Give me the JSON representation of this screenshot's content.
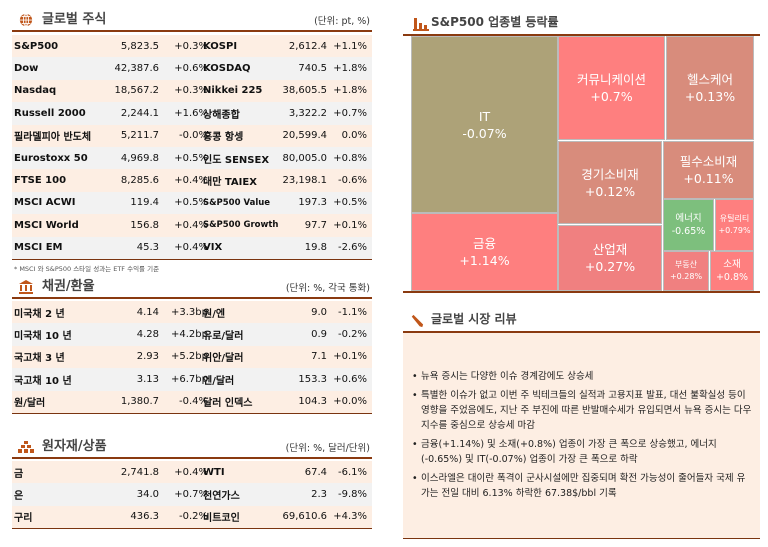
{
  "global_stocks": {
    "title": "글로벌 주식",
    "unit": "(단위: pt, %)",
    "rows": [
      [
        "S&P500",
        "5,823.5",
        "+0.3%",
        "KOSPI",
        "2,612.4",
        "+1.1%"
      ],
      [
        "Dow",
        "42,387.6",
        "+0.6%",
        "KOSDAQ",
        "740.5",
        "+1.8%"
      ],
      [
        "Nasdaq",
        "18,567.2",
        "+0.3%",
        "Nikkei 225",
        "38,605.5",
        "+1.8%"
      ],
      [
        "Russell 2000",
        "2,244.1",
        "+1.6%",
        "상해종합",
        "3,322.2",
        "+0.7%"
      ],
      [
        "필라델피아 반도체",
        "5,211.7",
        "-0.0%",
        "홍콩 항셍",
        "20,599.4",
        "0.0%"
      ],
      [
        "Eurostoxx 50",
        "4,969.8",
        "+0.5%",
        "인도 SENSEX",
        "80,005.0",
        "+0.8%"
      ],
      [
        "FTSE 100",
        "8,285.6",
        "+0.4%",
        "대만 TAIEX",
        "23,198.1",
        "-0.6%"
      ],
      [
        "MSCI ACWI",
        "119.4",
        "+0.5%",
        "S&P500 Value",
        "197.3",
        "+0.5%"
      ],
      [
        "MSCI World",
        "156.8",
        "+0.4%",
        "S&P500 Growth",
        "97.7",
        "+0.1%"
      ],
      [
        "MSCI EM",
        "45.3",
        "+0.4%",
        "VIX",
        "19.8",
        "-2.6%"
      ]
    ],
    "footnote": "* MSCI 와 S&P500 스타일 성과는 ETF 수익률 기준"
  },
  "bonds_fx": {
    "title": "채권/환율",
    "unit": "(단위: %, 각국 통화)",
    "rows": [
      [
        "미국채 2 년",
        "4.14",
        "+3.3bp",
        "원/엔",
        "9.0",
        "-1.1%"
      ],
      [
        "미국채 10 년",
        "4.28",
        "+4.2bp",
        "유로/달러",
        "0.9",
        "-0.2%"
      ],
      [
        "국고채 3 년",
        "2.93",
        "+5.2bp",
        "위안/달러",
        "7.1",
        "+0.1%"
      ],
      [
        "국고채 10 년",
        "3.13",
        "+6.7bp",
        "엔/달러",
        "153.3",
        "+0.6%"
      ],
      [
        "원/달러",
        "1,380.7",
        "-0.4%",
        "달러 인덱스",
        "104.3",
        "+0.0%"
      ]
    ]
  },
  "commodities": {
    "title": "원자재/상품",
    "unit": "(단위: %, 달러/단위)",
    "rows": [
      [
        "금",
        "2,741.8",
        "+0.4%",
        "WTI",
        "67.4",
        "-6.1%"
      ],
      [
        "은",
        "34.0",
        "+0.7%",
        "천연가스",
        "2.3",
        "-9.8%"
      ],
      [
        "구리",
        "436.3",
        "-0.2%",
        "비트코인",
        "69,610.6",
        "+4.3%"
      ]
    ]
  },
  "sectors": {
    "title": "S&P500 업종별 등락률",
    "colors": {
      "down_small": "#ada278",
      "up_strong": "#fe7f7f",
      "up_weak": "#d88c7c",
      "down_strong": "#7dbf7d"
    },
    "items": [
      {
        "name": "IT",
        "change": "-0.07%",
        "color": "#ada278"
      },
      {
        "name": "금융",
        "change": "+1.14%",
        "color": "#fe7f7f"
      },
      {
        "name": "커뮤니케이션",
        "change": "+0.7%",
        "color": "#fe7f7f"
      },
      {
        "name": "헬스케어",
        "change": "+0.13%",
        "color": "#d88c7c"
      },
      {
        "name": "경기소비재",
        "change": "+0.12%",
        "color": "#d88c7c"
      },
      {
        "name": "필수소비재",
        "change": "+0.11%",
        "color": "#d88c7c"
      },
      {
        "name": "산업재",
        "change": "+0.27%",
        "color": "#f08080"
      },
      {
        "name": "에너지",
        "change": "-0.65%",
        "color": "#7dbf7d"
      },
      {
        "name": "유틸리티",
        "change": "+0.79%",
        "color": "#fe7f7f"
      },
      {
        "name": "부동산",
        "change": "+0.28%",
        "color": "#f08080"
      },
      {
        "name": "소재",
        "change": "+0.8%",
        "color": "#fe7f7f"
      }
    ]
  },
  "review": {
    "title": "글로벌 시장 리뷰",
    "bullets": [
      "뉴욕 증시는 다양한 이슈 경계감에도 상승세",
      "특별한 이슈가 없고 이번 주 빅테크들의 실적과 고용지표 발표, 대선 불확실성 등이 영향을 주었음에도, 지난 주 부진에 따른 반발매수세가 유입되면서 뉴욕 증시는 다우 지수를 중심으로 상승세 마감",
      "금융(+1.14%) 및 소재(+0.8%) 업종이 가장 큰 폭으로 상승했고, 에너지(-0.65%) 및 IT(-0.07%) 업종이 가장 큰 폭으로 하락",
      "이스라엘은 대이란 폭격이 군사시설에만 집중되며 확전 가능성이 줄어들자 국제 유가는 전일 대비 6.13% 하락한 67.38$/bbl 기록"
    ]
  },
  "icons": {
    "global": "globe-icon",
    "bonds": "bank-icon",
    "commodities": "gold-bars-icon",
    "sectors": "bar-chart-icon",
    "review": "pencil-icon"
  },
  "accent": "#c0561a"
}
